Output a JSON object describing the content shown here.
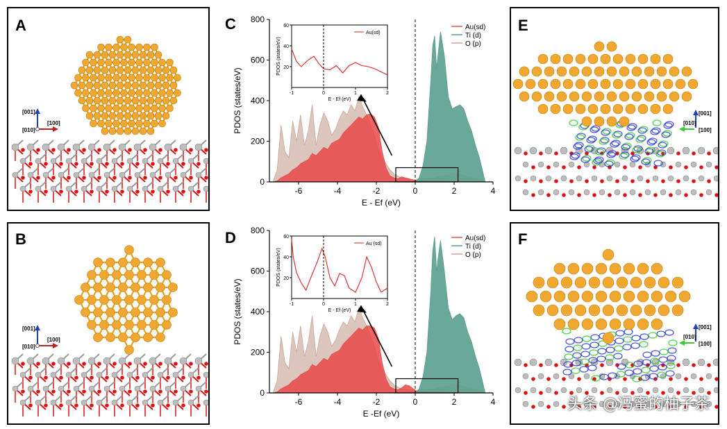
{
  "panels": {
    "a": {
      "letter": "A",
      "axes": {
        "up": "[001]",
        "right": "[100]",
        "origin": "[010]"
      }
    },
    "b": {
      "letter": "B",
      "axes": {
        "up": "[001]",
        "right": "[100]",
        "origin": "[010]"
      }
    },
    "c": {
      "letter": "C"
    },
    "d": {
      "letter": "D"
    },
    "e": {
      "letter": "E",
      "axes": {
        "up": "[001]",
        "left": "[010]",
        "right": "[100]"
      }
    },
    "f": {
      "letter": "F",
      "axes": {
        "up": "[001]",
        "left": "[010]",
        "right": "[100]"
      }
    }
  },
  "chart_data": [
    {
      "id": "C",
      "type": "area",
      "title": "",
      "xlabel": "E - Ef (eV)",
      "ylabel": "PDOS (states/eV)",
      "xlim": [
        -7.5,
        4
      ],
      "ylim": [
        0,
        800
      ],
      "xticks": [
        -6,
        -4,
        -2,
        0,
        2,
        4
      ],
      "yticks": [
        0,
        200,
        400,
        600,
        800
      ],
      "legend": [
        "Au(sd)",
        "Ti (d)",
        "O (p)"
      ],
      "series": [
        {
          "name": "O (p)",
          "x": [
            -7.3,
            -7.1,
            -6.9,
            -6.7,
            -6.5,
            -6.3,
            -6.1,
            -5.9,
            -5.7,
            -5.5,
            -5.3,
            -5.1,
            -4.9,
            -4.7,
            -4.5,
            -4.3,
            -4.1,
            -3.9,
            -3.7,
            -3.5,
            -3.3,
            -3.1,
            -2.9,
            -2.7,
            -2.5,
            -2.3,
            -2.1,
            -1.9,
            -1.7,
            -1.5,
            -1.3,
            -1.1,
            -0.9,
            -0.7,
            -0.5,
            -0.3,
            0,
            0.5,
            1,
            1.5,
            2,
            2.5,
            3,
            3.5
          ],
          "y": [
            5,
            60,
            280,
            150,
            120,
            300,
            200,
            330,
            180,
            250,
            380,
            180,
            280,
            340,
            300,
            230,
            260,
            310,
            350,
            330,
            380,
            350,
            420,
            370,
            330,
            280,
            230,
            160,
            120,
            90,
            60,
            40,
            30,
            20,
            15,
            12,
            10,
            15,
            20,
            30,
            40,
            30,
            20,
            10
          ]
        },
        {
          "name": "Au(sd)",
          "x": [
            -7.3,
            -7.1,
            -6.9,
            -6.7,
            -6.5,
            -6.3,
            -6.1,
            -5.9,
            -5.7,
            -5.5,
            -5.3,
            -5.1,
            -4.9,
            -4.7,
            -4.5,
            -4.3,
            -4.1,
            -3.9,
            -3.7,
            -3.5,
            -3.3,
            -3.1,
            -2.9,
            -2.7,
            -2.5,
            -2.3,
            -2.1,
            -1.9,
            -1.7,
            -1.5,
            -1.3,
            -1.1,
            -0.9,
            -0.7,
            -0.5,
            -0.3,
            -0.1,
            0.1,
            0.3,
            0.6,
            1,
            1.5,
            2,
            2.5,
            3,
            3.5
          ],
          "y": [
            0,
            5,
            20,
            30,
            40,
            60,
            70,
            90,
            100,
            110,
            140,
            130,
            150,
            170,
            160,
            190,
            200,
            210,
            240,
            260,
            280,
            300,
            320,
            310,
            330,
            335,
            320,
            270,
            150,
            70,
            30,
            20,
            15,
            25,
            20,
            15,
            10,
            8,
            6,
            5,
            4,
            3,
            2,
            1,
            0,
            0
          ]
        },
        {
          "name": "Ti (d)",
          "x": [
            0,
            0.2,
            0.4,
            0.6,
            0.8,
            0.9,
            1.0,
            1.1,
            1.2,
            1.3,
            1.5,
            1.7,
            1.9,
            2.1,
            2.3,
            2.5,
            2.7,
            2.9,
            3.1,
            3.3,
            3.5,
            3.6
          ],
          "y": [
            0,
            20,
            80,
            200,
            500,
            670,
            720,
            560,
            650,
            740,
            620,
            420,
            360,
            370,
            380,
            360,
            300,
            250,
            180,
            120,
            40,
            0
          ]
        }
      ],
      "inset": {
        "xlabel": "E - Ef (eV)",
        "ylabel": "PDOS (states/eV)",
        "xlim": [
          -1,
          2
        ],
        "ylim": [
          0,
          60
        ],
        "xticks": [
          -1,
          0,
          1,
          2
        ],
        "yticks": [
          20,
          40,
          60
        ],
        "legend": [
          "Au(sd)"
        ],
        "series": [
          {
            "name": "Au(sd)",
            "x": [
              -1,
              -0.85,
              -0.7,
              -0.5,
              -0.3,
              -0.15,
              0,
              0.2,
              0.4,
              0.6,
              0.8,
              1.0,
              1.2,
              1.4,
              1.6,
              1.8,
              2.0
            ],
            "y": [
              37,
              25,
              20,
              26,
              30,
              23,
              18,
              17,
              21,
              14,
              21,
              24,
              21,
              20,
              18,
              15,
              12
            ]
          }
        ]
      }
    },
    {
      "id": "D",
      "type": "area",
      "title": "",
      "xlabel": "E -Ef (eV)",
      "ylabel": "PDOS (states/eV)",
      "xlim": [
        -7.5,
        4
      ],
      "ylim": [
        0,
        800
      ],
      "xticks": [
        -6,
        -4,
        -2,
        0,
        2,
        4
      ],
      "yticks": [
        0,
        200,
        400,
        600,
        800
      ],
      "legend": [
        "Au(sd)",
        "Ti (d)",
        "O (p)"
      ],
      "series": [
        {
          "name": "O (p)",
          "x": [
            -7.3,
            -7.1,
            -6.9,
            -6.7,
            -6.5,
            -6.3,
            -6.1,
            -5.9,
            -5.7,
            -5.5,
            -5.3,
            -5.1,
            -4.9,
            -4.7,
            -4.5,
            -4.3,
            -4.1,
            -3.9,
            -3.7,
            -3.5,
            -3.3,
            -3.1,
            -2.9,
            -2.7,
            -2.5,
            -2.3,
            -2.1,
            -1.9,
            -1.7,
            -1.5,
            -1.3,
            -1.1,
            -0.9,
            -0.7,
            -0.5,
            -0.3,
            0,
            0.5,
            1,
            1.5,
            2,
            2.5,
            3,
            3.5
          ],
          "y": [
            5,
            60,
            280,
            150,
            120,
            300,
            200,
            330,
            180,
            250,
            380,
            180,
            280,
            340,
            300,
            230,
            260,
            310,
            350,
            330,
            380,
            350,
            420,
            370,
            330,
            280,
            230,
            160,
            120,
            90,
            60,
            40,
            30,
            20,
            15,
            12,
            10,
            15,
            20,
            30,
            40,
            30,
            20,
            10
          ]
        },
        {
          "name": "Au(sd)",
          "x": [
            -7.3,
            -7.1,
            -6.9,
            -6.7,
            -6.5,
            -6.3,
            -6.1,
            -5.9,
            -5.7,
            -5.5,
            -5.3,
            -5.1,
            -4.9,
            -4.7,
            -4.5,
            -4.3,
            -4.1,
            -3.9,
            -3.7,
            -3.5,
            -3.3,
            -3.1,
            -2.9,
            -2.7,
            -2.5,
            -2.3,
            -2.1,
            -1.9,
            -1.7,
            -1.5,
            -1.3,
            -1.1,
            -0.9,
            -0.7,
            -0.5,
            -0.3,
            -0.1,
            0.1,
            0.3,
            0.6,
            1,
            1.5,
            2,
            2.5,
            3,
            3.5
          ],
          "y": [
            0,
            5,
            20,
            30,
            40,
            60,
            70,
            90,
            100,
            110,
            140,
            130,
            150,
            170,
            160,
            190,
            200,
            210,
            240,
            260,
            280,
            300,
            320,
            310,
            330,
            330,
            320,
            270,
            150,
            70,
            30,
            20,
            15,
            25,
            40,
            35,
            20,
            8,
            6,
            5,
            4,
            3,
            2,
            1,
            0,
            0
          ]
        },
        {
          "name": "Ti (d)",
          "x": [
            0,
            0.2,
            0.4,
            0.6,
            0.8,
            0.9,
            1.0,
            1.1,
            1.2,
            1.3,
            1.5,
            1.7,
            1.9,
            2.1,
            2.3,
            2.5,
            2.7,
            2.9,
            3.1,
            3.3,
            3.5,
            3.6
          ],
          "y": [
            0,
            20,
            80,
            200,
            500,
            700,
            770,
            600,
            680,
            750,
            600,
            420,
            360,
            380,
            390,
            370,
            300,
            250,
            180,
            120,
            40,
            0
          ]
        }
      ],
      "inset": {
        "xlabel": "E - Ef (eV)",
        "ylabel": "PDOS (states/eV)",
        "xlim": [
          -1,
          2
        ],
        "ylim": [
          0,
          60
        ],
        "xticks": [
          -1,
          0,
          1,
          2
        ],
        "yticks": [
          20,
          40,
          60
        ],
        "legend": [
          "Au (sd)"
        ],
        "series": [
          {
            "name": "Au (sd)",
            "x": [
              -1,
              -0.95,
              -0.85,
              -0.7,
              -0.55,
              -0.4,
              -0.2,
              -0.05,
              0.05,
              0.2,
              0.35,
              0.5,
              0.65,
              0.8,
              1.0,
              1.2,
              1.35,
              1.5,
              1.65,
              1.8,
              2.0
            ],
            "y": [
              57,
              40,
              25,
              15,
              8,
              20,
              35,
              48,
              40,
              20,
              12,
              24,
              22,
              10,
              6,
              20,
              40,
              30,
              16,
              6,
              10
            ]
          }
        ]
      }
    }
  ],
  "watermark": "头条 @冯蜜的柚子茶",
  "colors": {
    "au": "#f0a830",
    "ti": "#bdbdbd",
    "o": "#dd1111",
    "au_pdos": "#e85050",
    "ti_pdos": "#5a9f8e",
    "o_pdos": "#c9a89a"
  }
}
